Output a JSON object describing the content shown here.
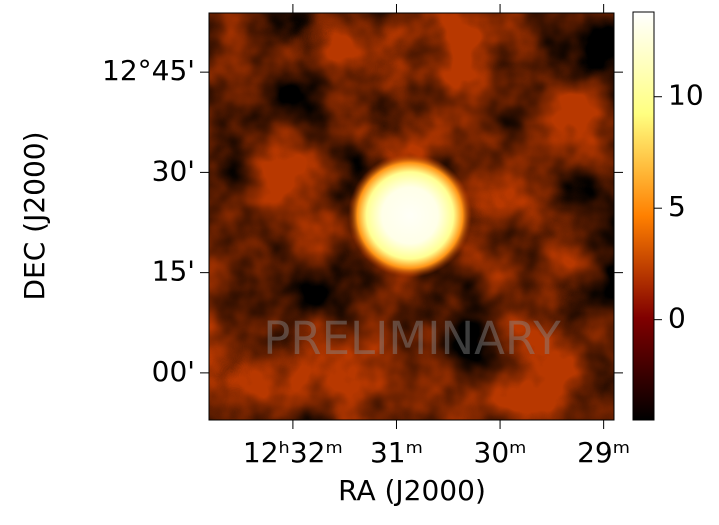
{
  "chart_data": {
    "type": "skymap",
    "xlabel": "RA (J2000)",
    "ylabel": "DEC (J2000)",
    "xlim": [
      32.81,
      28.9
    ],
    "xticks": [
      {
        "value": 32,
        "label": "12ʰ32ᵐ"
      },
      {
        "value": 31,
        "label": "31ᵐ"
      },
      {
        "value": 30,
        "label": "30ᵐ"
      },
      {
        "value": 29,
        "label": "29ᵐ"
      }
    ],
    "ylim": [
      -7.05,
      53.85
    ],
    "yticks": [
      {
        "value": 45,
        "label": "12°45'"
      },
      {
        "value": 30,
        "label": "30'"
      },
      {
        "value": 15,
        "label": "15'"
      },
      {
        "value": 0,
        "label": "00'"
      }
    ],
    "colormap": "afmhot",
    "clim": [
      -4.5,
      13.8
    ],
    "cticks": [
      0,
      5,
      10
    ],
    "source": {
      "ra": 30.87,
      "dec": 23.55,
      "peak": 13.5
    },
    "watermark": "PRELIMINARY"
  }
}
